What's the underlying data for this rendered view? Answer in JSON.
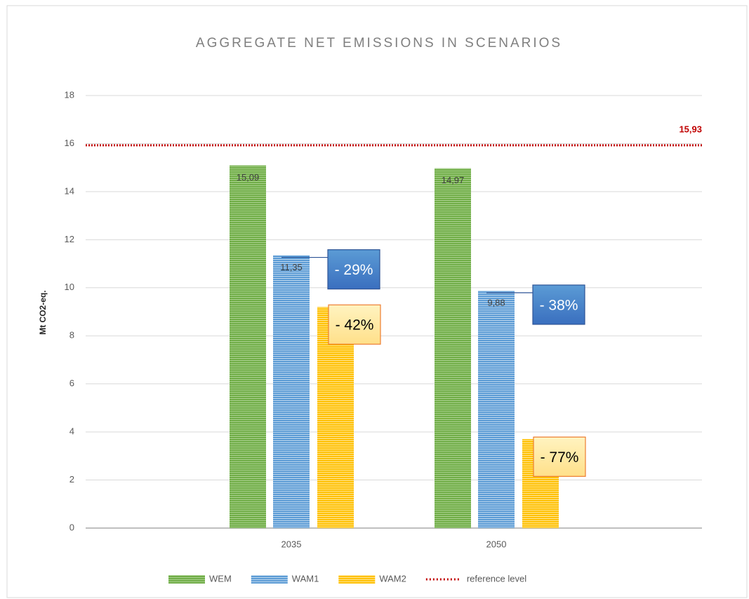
{
  "chart_data": {
    "type": "bar",
    "title": "AGGREGATE NET EMISSIONS IN SCENARIOS",
    "y_label": "Mt CO2-eq.",
    "categories": [
      "2035",
      "2050"
    ],
    "series": [
      {
        "name": "WEM",
        "color": "#70ad47",
        "values": [
          15.09,
          14.97
        ],
        "value_labels": [
          "15,09",
          "14,97"
        ]
      },
      {
        "name": "WAM1",
        "color": "#5b9bd5",
        "values": [
          11.35,
          9.88
        ],
        "value_labels": [
          "11,35",
          "9,88"
        ],
        "annotations": [
          "- 29%",
          "- 38%"
        ]
      },
      {
        "name": "WAM2",
        "color": "#ffc000",
        "values": [
          9.2,
          3.7
        ],
        "annotations": [
          "- 42%",
          "- 77%"
        ]
      }
    ],
    "reference": {
      "name": "reference level",
      "value": 15.93,
      "value_label": "15,93",
      "color": "#c00000"
    },
    "ylim": [
      0,
      18
    ],
    "yticks": [
      0,
      2,
      4,
      6,
      8,
      10,
      12,
      14,
      16,
      18
    ],
    "grid": true,
    "legend": "bottom"
  }
}
